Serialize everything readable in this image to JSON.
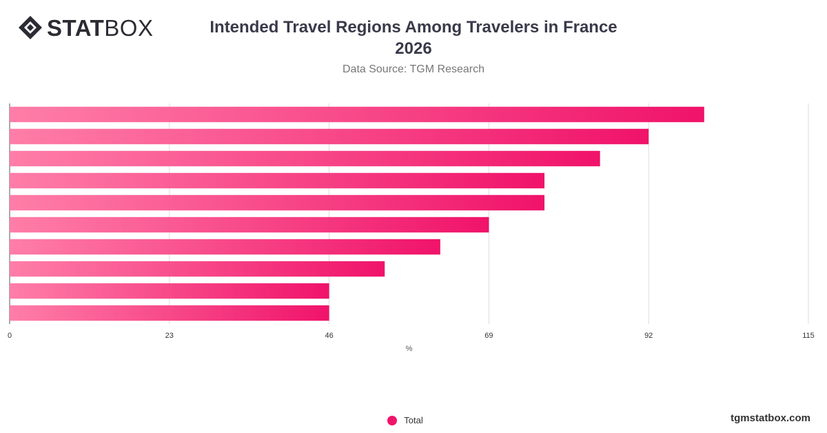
{
  "brand": {
    "logo_stat": "STAT",
    "logo_box": "BOX",
    "website": "tgmstatbox.com"
  },
  "header": {
    "title_line1": "Intended Travel Regions Among Travelers in France",
    "title_line2": "2026",
    "subtitle": "Data Source: TGM Research"
  },
  "colors": {
    "bar_start": "#ff7ea8",
    "bar_end": "#f0136a",
    "legend_dot": "#f0136a",
    "grid": "#dddddd",
    "axis_text": "#333333"
  },
  "chart_data": {
    "type": "bar",
    "orientation": "horizontal",
    "categories": [
      "",
      "",
      "",
      "",
      "",
      "",
      "",
      "",
      "",
      ""
    ],
    "series": [
      {
        "name": "Total",
        "values": [
          100,
          92,
          85,
          77,
          77,
          69,
          62,
          54,
          46,
          46
        ]
      }
    ],
    "xlabel": "%",
    "ylabel": "",
    "xlim": [
      0,
      115
    ],
    "xticks": [
      0,
      23,
      46,
      69,
      92,
      115
    ],
    "grid": true,
    "legend_position": "bottom-center"
  }
}
